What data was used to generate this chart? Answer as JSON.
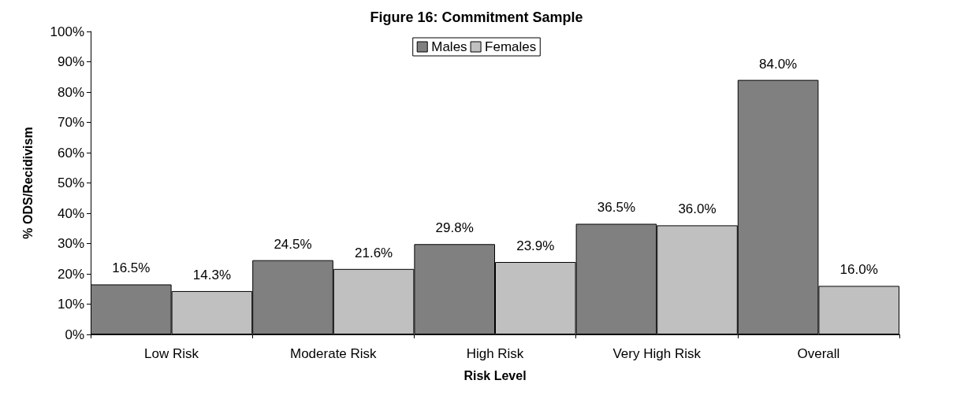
{
  "chart_data": {
    "type": "bar",
    "title": "Figure 16: Commitment Sample",
    "xlabel": "Risk Level",
    "ylabel": "% ODS/Recidivism",
    "categories": [
      "Low Risk",
      "Moderate Risk",
      "High Risk",
      "Very High Risk",
      "Overall"
    ],
    "series": [
      {
        "name": "Males",
        "color": "#808080",
        "values": [
          16.5,
          24.5,
          29.8,
          36.5,
          84.0
        ],
        "value_labels": [
          "16.5%",
          "24.5%",
          "29.8%",
          "36.5%",
          "84.0%"
        ]
      },
      {
        "name": "Females",
        "color": "#c0c0c0",
        "values": [
          14.3,
          21.6,
          23.9,
          36.0,
          16.0
        ],
        "value_labels": [
          "14.3%",
          "21.6%",
          "23.9%",
          "36.0%",
          "16.0%"
        ]
      }
    ],
    "ylim": [
      0,
      100
    ],
    "yticks": [
      {
        "value": 0,
        "label": "0%"
      },
      {
        "value": 10,
        "label": "10%"
      },
      {
        "value": 20,
        "label": "20%"
      },
      {
        "value": 30,
        "label": "30%"
      },
      {
        "value": 40,
        "label": "40%"
      },
      {
        "value": 50,
        "label": "50%"
      },
      {
        "value": 60,
        "label": "60%"
      },
      {
        "value": 70,
        "label": "70%"
      },
      {
        "value": 80,
        "label": "80%"
      },
      {
        "value": 90,
        "label": "90%"
      },
      {
        "value": 100,
        "label": "100%"
      }
    ],
    "grid": false,
    "legend": "top"
  }
}
